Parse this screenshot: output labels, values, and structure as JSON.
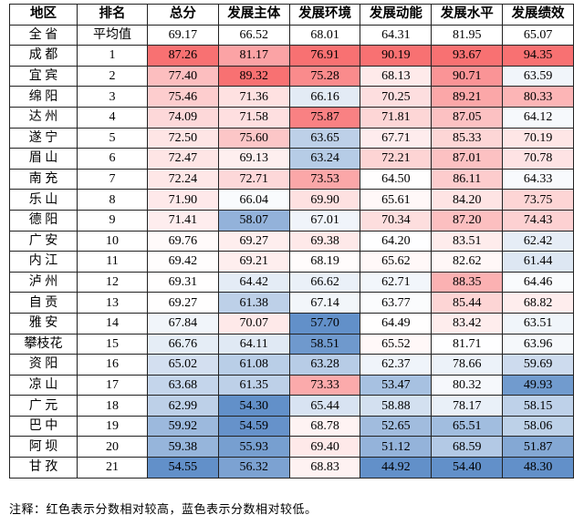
{
  "table": {
    "header": [
      "地区",
      "排名",
      "总分",
      "发展主体",
      "发展环境",
      "发展动能",
      "发展水平",
      "发展绩效"
    ],
    "rows": [
      [
        "全  省",
        "平均值",
        "69.17",
        "66.52",
        "68.01",
        "64.31",
        "81.95",
        "65.07"
      ],
      [
        "成  都",
        "1",
        "87.26",
        "81.17",
        "76.91",
        "90.19",
        "93.67",
        "94.35"
      ],
      [
        "宜  宾",
        "2",
        "77.40",
        "89.32",
        "75.28",
        "68.13",
        "90.71",
        "63.59"
      ],
      [
        "绵  阳",
        "3",
        "75.46",
        "71.36",
        "66.16",
        "70.25",
        "89.21",
        "80.33"
      ],
      [
        "达  州",
        "4",
        "74.09",
        "71.58",
        "75.87",
        "71.81",
        "87.05",
        "64.12"
      ],
      [
        "遂  宁",
        "5",
        "72.50",
        "75.60",
        "63.65",
        "67.71",
        "85.33",
        "70.19"
      ],
      [
        "眉  山",
        "6",
        "72.47",
        "69.13",
        "63.24",
        "72.21",
        "87.01",
        "70.78"
      ],
      [
        "南  充",
        "7",
        "72.24",
        "72.71",
        "73.53",
        "64.50",
        "86.11",
        "64.33"
      ],
      [
        "乐  山",
        "8",
        "71.90",
        "66.04",
        "69.90",
        "65.61",
        "84.20",
        "73.75"
      ],
      [
        "德  阳",
        "9",
        "71.41",
        "58.07",
        "67.01",
        "70.34",
        "87.20",
        "74.43"
      ],
      [
        "广  安",
        "10",
        "69.76",
        "69.27",
        "69.38",
        "64.20",
        "83.51",
        "62.42"
      ],
      [
        "内  江",
        "11",
        "69.42",
        "69.21",
        "68.19",
        "65.62",
        "82.62",
        "61.44"
      ],
      [
        "泸  州",
        "12",
        "69.31",
        "64.42",
        "66.62",
        "62.71",
        "88.35",
        "64.46"
      ],
      [
        "自  贡",
        "13",
        "69.27",
        "61.38",
        "67.14",
        "63.77",
        "85.44",
        "68.82"
      ],
      [
        "雅  安",
        "14",
        "67.84",
        "70.07",
        "57.70",
        "64.49",
        "83.42",
        "63.51"
      ],
      [
        "攀枝花",
        "15",
        "66.76",
        "64.11",
        "58.51",
        "65.52",
        "81.71",
        "63.96"
      ],
      [
        "资  阳",
        "16",
        "65.02",
        "61.08",
        "63.28",
        "62.37",
        "78.66",
        "59.69"
      ],
      [
        "凉  山",
        "17",
        "63.68",
        "61.35",
        "73.33",
        "53.47",
        "80.32",
        "49.93"
      ],
      [
        "广  元",
        "18",
        "62.99",
        "54.30",
        "65.44",
        "58.88",
        "78.17",
        "58.15"
      ],
      [
        "巴  中",
        "19",
        "59.92",
        "54.59",
        "68.78",
        "52.65",
        "65.51",
        "58.06"
      ],
      [
        "阿  坝",
        "20",
        "59.38",
        "55.93",
        "69.40",
        "51.12",
        "68.59",
        "51.87"
      ],
      [
        "甘  孜",
        "21",
        "54.55",
        "56.32",
        "68.83",
        "44.92",
        "54.40",
        "48.30"
      ]
    ],
    "high_color": "#f8696b",
    "low_color": "#5a8ac6"
  },
  "footnote": "注释：红色表示分数相对较高，蓝色表示分数相对较低。"
}
